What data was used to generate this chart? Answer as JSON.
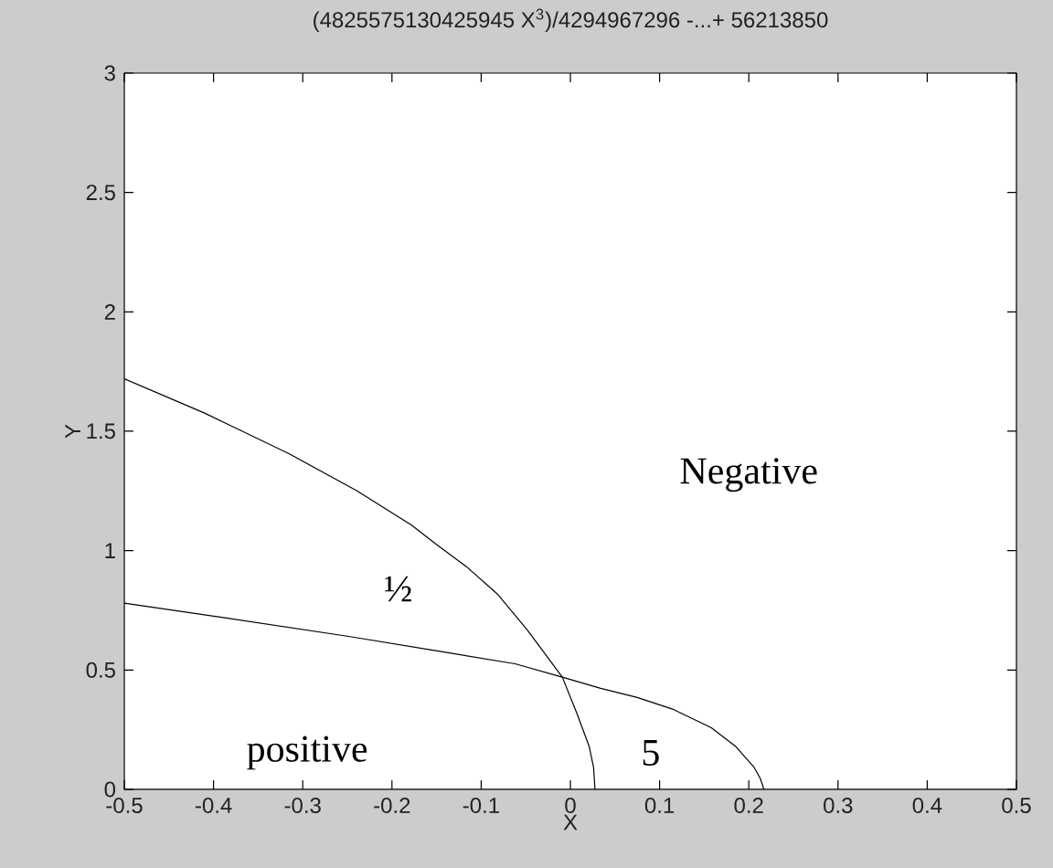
{
  "chart_data": {
    "type": "line",
    "title": "(4825575130425945 X$^{3}$)/4294967296 -...+ 56213850",
    "xlabel": "X",
    "ylabel": "Y",
    "xlim": [
      -0.5,
      0.5
    ],
    "ylim": [
      0,
      3
    ],
    "xticks": [
      -0.5,
      -0.4,
      -0.3,
      -0.2,
      -0.1,
      0,
      0.1,
      0.2,
      0.3,
      0.4,
      0.5
    ],
    "yticks": [
      0,
      0.5,
      1,
      1.5,
      2,
      2.5,
      3
    ],
    "line_style": "solid",
    "series": [
      {
        "color": "#000000",
        "x": [
          -0.5,
          -0.41,
          -0.315,
          -0.24,
          -0.178,
          -0.151,
          -0.1165,
          -0.082,
          -0.048,
          -0.009,
          0.007,
          0.021,
          0.026,
          0.0276
        ],
        "values": [
          1.72,
          1.576,
          1.405,
          1.252,
          1.107,
          1.028,
          0.933,
          0.819,
          0.666,
          0.47,
          0.321,
          0.181,
          0.092,
          0
        ]
      },
      {
        "color": "#000000",
        "x": [
          -0.5,
          -0.384,
          -0.247,
          -0.151,
          -0.062,
          -0.009,
          0.034,
          0.075,
          0.116,
          0.158,
          0.185,
          0.206,
          0.213,
          0.217
        ],
        "values": [
          0.78,
          0.717,
          0.64,
          0.581,
          0.526,
          0.47,
          0.423,
          0.385,
          0.334,
          0.258,
          0.181,
          0.092,
          0.045,
          0
        ]
      }
    ],
    "annotations": [
      "½",
      "Negative",
      "positive",
      "5"
    ]
  }
}
